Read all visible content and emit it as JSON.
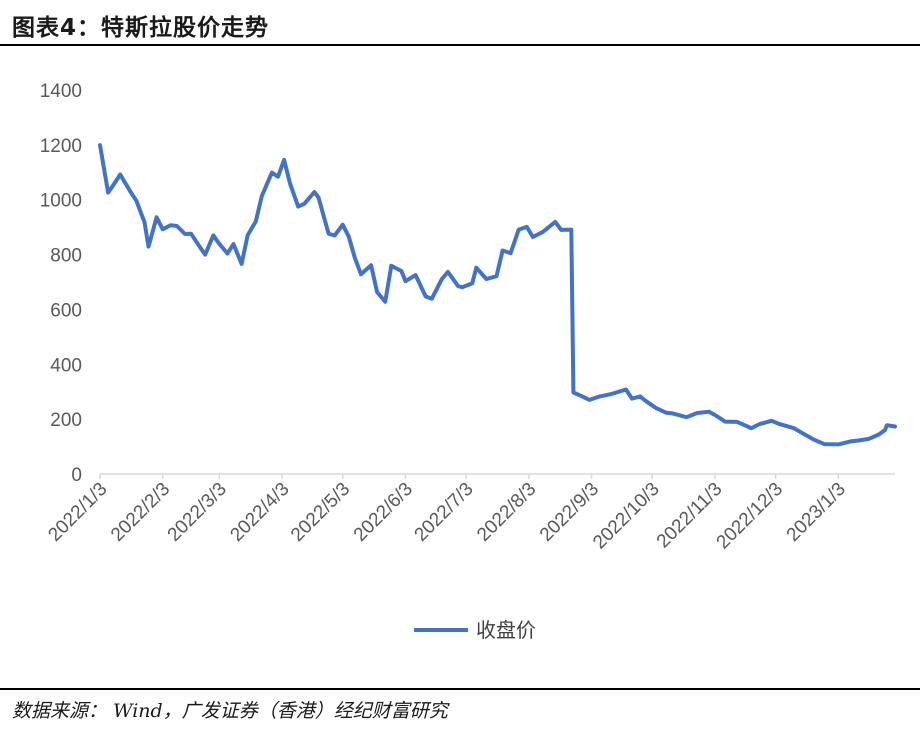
{
  "header": {
    "title": "图表4：特斯拉股价走势"
  },
  "footer": {
    "source": "数据来源： Wind，广发证券（香港）经纪财富研究"
  },
  "chart_data": {
    "type": "line",
    "title": "",
    "xlabel": "",
    "ylabel": "",
    "ylim": [
      0,
      1400
    ],
    "y_ticks": [
      0,
      200,
      400,
      600,
      800,
      1000,
      1200,
      1400
    ],
    "x_ticks": [
      "2022/1/3",
      "2022/2/3",
      "2022/3/3",
      "2022/4/3",
      "2022/5/3",
      "2022/6/3",
      "2022/7/3",
      "2022/8/3",
      "2022/9/3",
      "2022/10/3",
      "2022/11/3",
      "2022/12/3",
      "2023/1/3"
    ],
    "grid": false,
    "legend": "bottom",
    "colors": {
      "series": "#4472c4"
    },
    "series": [
      {
        "name": "收盘价",
        "points": [
          [
            "2022/1/3",
            1199
          ],
          [
            "2022/1/7",
            1026
          ],
          [
            "2022/1/10",
            1058
          ],
          [
            "2022/1/13",
            1092
          ],
          [
            "2022/1/18",
            1030
          ],
          [
            "2022/1/21",
            996
          ],
          [
            "2022/1/25",
            918
          ],
          [
            "2022/1/27",
            829
          ],
          [
            "2022/1/31",
            936
          ],
          [
            "2022/2/3",
            892
          ],
          [
            "2022/2/7",
            907
          ],
          [
            "2022/2/10",
            904
          ],
          [
            "2022/2/14",
            875
          ],
          [
            "2022/2/17",
            876
          ],
          [
            "2022/2/22",
            821
          ],
          [
            "2022/2/24",
            800
          ],
          [
            "2022/2/28",
            870
          ],
          [
            "2022/3/3",
            839
          ],
          [
            "2022/3/7",
            804
          ],
          [
            "2022/3/10",
            838
          ],
          [
            "2022/3/14",
            766
          ],
          [
            "2022/3/17",
            871
          ],
          [
            "2022/3/21",
            921
          ],
          [
            "2022/3/24",
            1013
          ],
          [
            "2022/3/29",
            1099
          ],
          [
            "2022/4/1",
            1084
          ],
          [
            "2022/4/4",
            1145
          ],
          [
            "2022/4/7",
            1057
          ],
          [
            "2022/4/11",
            975
          ],
          [
            "2022/4/14",
            985
          ],
          [
            "2022/4/19",
            1028
          ],
          [
            "2022/4/21",
            1008
          ],
          [
            "2022/4/26",
            876
          ],
          [
            "2022/4/29",
            870
          ],
          [
            "2022/5/3",
            909
          ],
          [
            "2022/5/6",
            865
          ],
          [
            "2022/5/9",
            787
          ],
          [
            "2022/5/12",
            728
          ],
          [
            "2022/5/17",
            761
          ],
          [
            "2022/5/20",
            663
          ],
          [
            "2022/5/24",
            628
          ],
          [
            "2022/5/27",
            759
          ],
          [
            "2022/6/1",
            740
          ],
          [
            "2022/6/3",
            703
          ],
          [
            "2022/6/8",
            725
          ],
          [
            "2022/6/13",
            647
          ],
          [
            "2022/6/16",
            639
          ],
          [
            "2022/6/21",
            711
          ],
          [
            "2022/6/24",
            737
          ],
          [
            "2022/6/29",
            685
          ],
          [
            "2022/7/1",
            681
          ],
          [
            "2022/7/6",
            695
          ],
          [
            "2022/7/8",
            752
          ],
          [
            "2022/7/13",
            711
          ],
          [
            "2022/7/18",
            721
          ],
          [
            "2022/7/21",
            815
          ],
          [
            "2022/7/25",
            805
          ],
          [
            "2022/7/29",
            891
          ],
          [
            "2022/8/2",
            901
          ],
          [
            "2022/8/5",
            864
          ],
          [
            "2022/8/10",
            883
          ],
          [
            "2022/8/16",
            919
          ],
          [
            "2022/8/19",
            890
          ],
          [
            "2022/8/24",
            891
          ],
          [
            "2022/8/25",
            297
          ],
          [
            "2022/8/29",
            284
          ],
          [
            "2022/9/2",
            270
          ],
          [
            "2022/9/7",
            283
          ],
          [
            "2022/9/13",
            292
          ],
          [
            "2022/9/20",
            308
          ],
          [
            "2022/9/23",
            275
          ],
          [
            "2022/9/27",
            283
          ],
          [
            "2022/9/30",
            265
          ],
          [
            "2022/10/5",
            240
          ],
          [
            "2022/10/10",
            223
          ],
          [
            "2022/10/13",
            221
          ],
          [
            "2022/10/20",
            207
          ],
          [
            "2022/10/25",
            222
          ],
          [
            "2022/10/31",
            227
          ],
          [
            "2022/11/3",
            215
          ],
          [
            "2022/11/8",
            191
          ],
          [
            "2022/11/14",
            190
          ],
          [
            "2022/11/21",
            167
          ],
          [
            "2022/11/25",
            182
          ],
          [
            "2022/12/1",
            194
          ],
          [
            "2022/12/5",
            182
          ],
          [
            "2022/12/12",
            167
          ],
          [
            "2022/12/16",
            150
          ],
          [
            "2022/12/22",
            125
          ],
          [
            "2022/12/27",
            109
          ],
          [
            "2023/1/3",
            108
          ],
          [
            "2023/1/9",
            119
          ],
          [
            "2023/1/13",
            122
          ],
          [
            "2023/1/18",
            128
          ],
          [
            "2023/1/23",
            144
          ],
          [
            "2023/1/26",
            160
          ],
          [
            "2023/1/27",
            178
          ],
          [
            "2023/1/31",
            173
          ]
        ]
      }
    ]
  }
}
